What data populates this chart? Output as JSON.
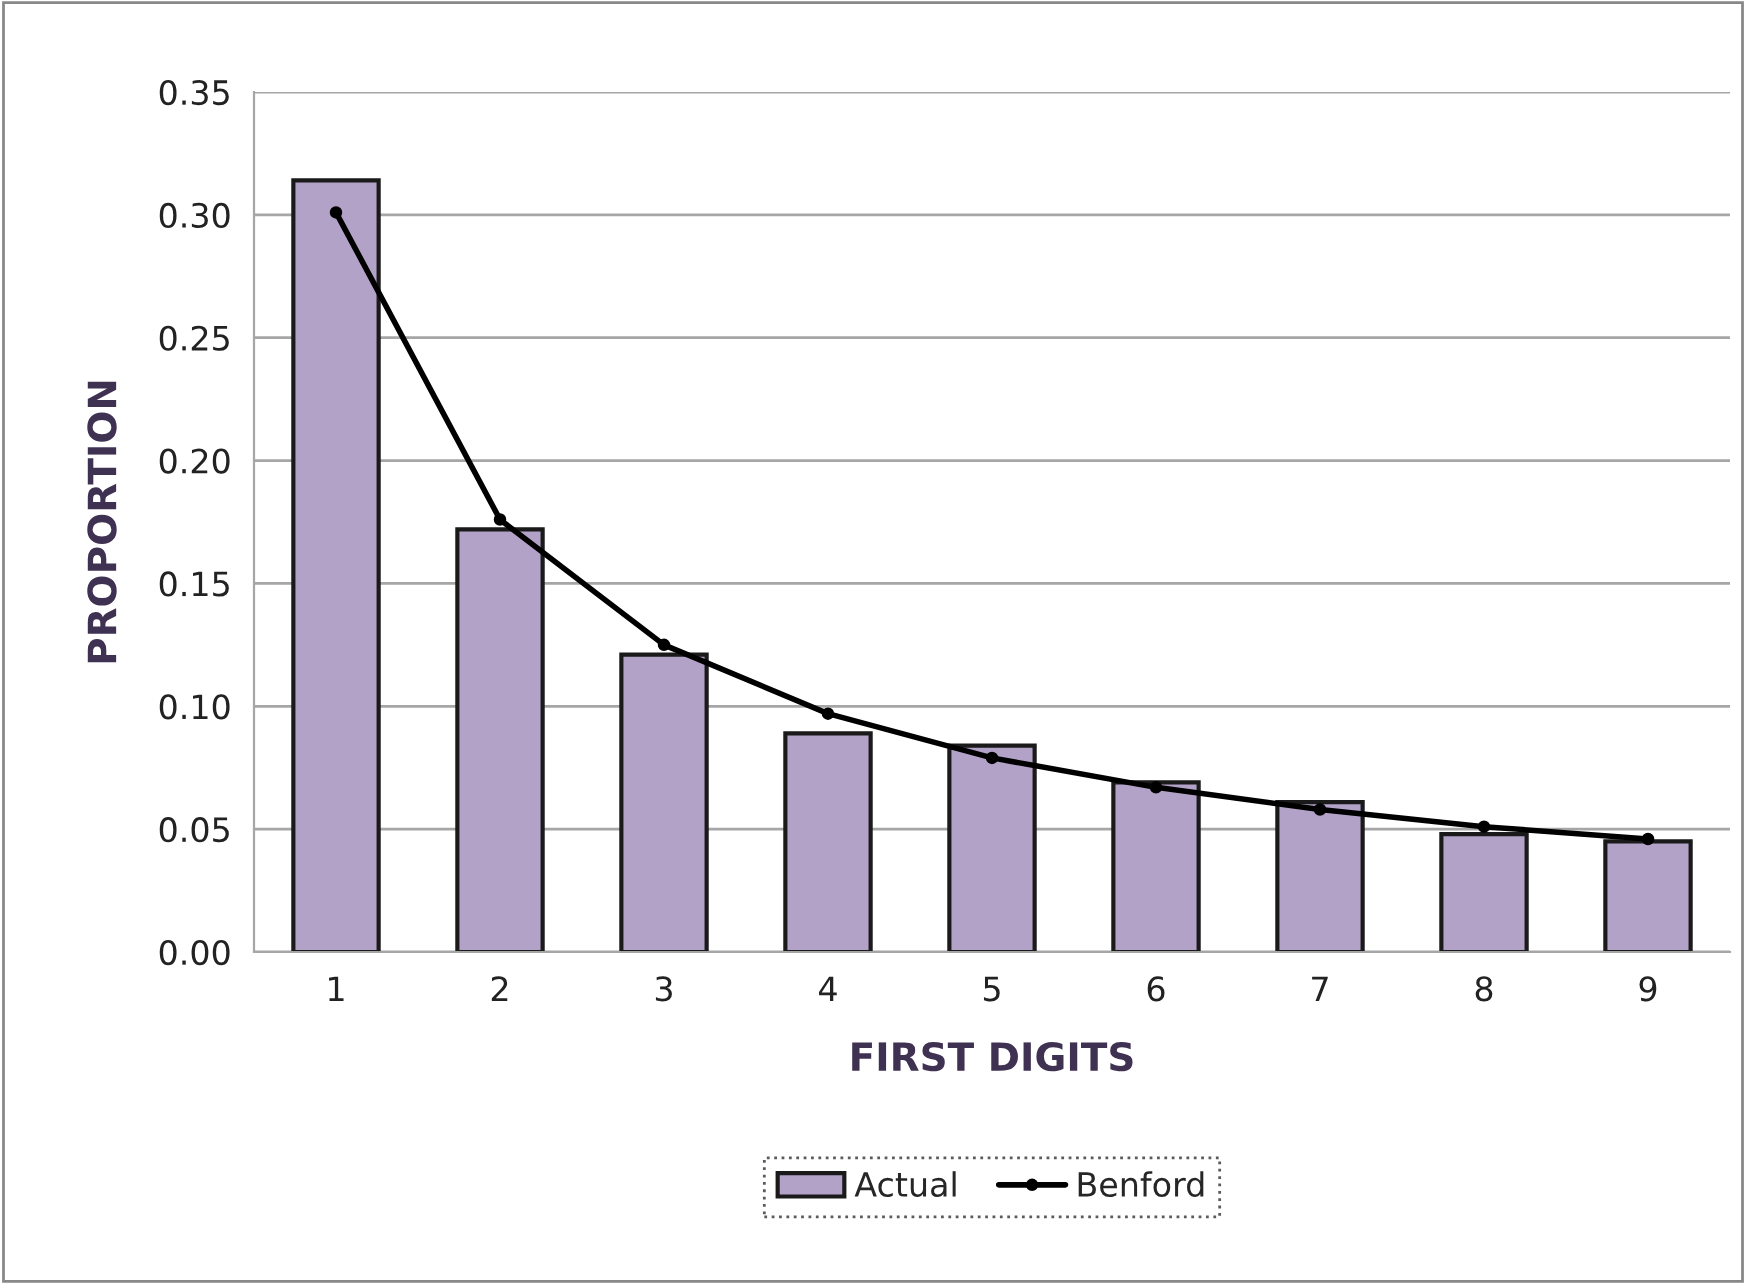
{
  "chart_data": {
    "type": "bar",
    "xlabel": "FIRST DIGITS",
    "ylabel": "PROPORTION",
    "categories": [
      "1",
      "2",
      "3",
      "4",
      "5",
      "6",
      "7",
      "8",
      "9"
    ],
    "series": [
      {
        "name": "Actual",
        "color": "#b3a2c7",
        "values": [
          0.314,
          0.172,
          0.121,
          0.089,
          0.084,
          0.069,
          0.061,
          0.048,
          0.045
        ]
      },
      {
        "name": "Benford",
        "type": "line",
        "color": "#000000",
        "marker": "circle",
        "values": [
          0.301,
          0.176,
          0.125,
          0.097,
          0.079,
          0.067,
          0.058,
          0.051,
          0.046
        ]
      }
    ],
    "ylim": [
      0,
      0.35
    ],
    "yticks": [
      {
        "value": 0,
        "label": "0.00"
      },
      {
        "value": 0.05,
        "label": "0.05"
      },
      {
        "value": 0.1,
        "label": "0.10"
      },
      {
        "value": 0.15,
        "label": "0.15"
      },
      {
        "value": 0.2,
        "label": "0.20"
      },
      {
        "value": 0.25,
        "label": "0.25"
      },
      {
        "value": 0.3,
        "label": "0.30"
      },
      {
        "value": 0.35,
        "label": "0.35"
      }
    ],
    "grid": "y",
    "legend": "bottom"
  }
}
